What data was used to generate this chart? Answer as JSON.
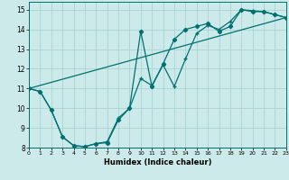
{
  "title": "",
  "xlabel": "Humidex (Indice chaleur)",
  "xlim": [
    0,
    23
  ],
  "ylim": [
    8,
    15.4
  ],
  "xticks": [
    0,
    1,
    2,
    3,
    4,
    5,
    6,
    7,
    8,
    9,
    10,
    11,
    12,
    13,
    14,
    15,
    16,
    17,
    18,
    19,
    20,
    21,
    22,
    23
  ],
  "yticks": [
    8,
    9,
    10,
    11,
    12,
    13,
    14,
    15
  ],
  "bg_color": "#cceaea",
  "grid_color": "#aad4d4",
  "line_color": "#007070",
  "line1_x": [
    0,
    1,
    2,
    3,
    4,
    5,
    6,
    7,
    8,
    9,
    10,
    11,
    12,
    13,
    14,
    15,
    16,
    17,
    18,
    19,
    20,
    21,
    22,
    23
  ],
  "line1_y": [
    11.0,
    10.85,
    9.9,
    8.55,
    8.1,
    8.05,
    8.2,
    8.25,
    9.4,
    10.0,
    13.9,
    11.1,
    12.25,
    13.5,
    14.0,
    14.15,
    14.3,
    13.9,
    14.15,
    15.0,
    14.9,
    14.9,
    14.75,
    14.6
  ],
  "line2_x": [
    0,
    1,
    2,
    3,
    4,
    5,
    6,
    7,
    8,
    9,
    10,
    11,
    12,
    13,
    14,
    15,
    16,
    17,
    18,
    19,
    20,
    21,
    22,
    23
  ],
  "line2_y": [
    11.0,
    10.85,
    9.9,
    8.55,
    8.1,
    8.05,
    8.2,
    8.3,
    9.5,
    10.0,
    11.5,
    11.15,
    12.2,
    11.1,
    12.5,
    13.8,
    14.2,
    14.0,
    14.4,
    15.0,
    14.95,
    14.9,
    14.75,
    14.6
  ],
  "line3_x": [
    0,
    23
  ],
  "line3_y": [
    11.0,
    14.6
  ]
}
